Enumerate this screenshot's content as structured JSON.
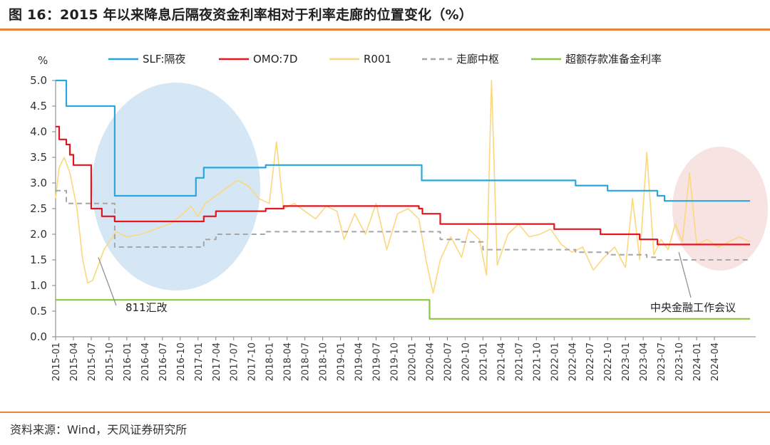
{
  "header": {
    "title": "图 16：2015 年以来降息后隔夜资金利率相对于利率走廊的位置变化（%）"
  },
  "footer": {
    "source": "资料来源：Wind，天风证券研究所"
  },
  "colors": {
    "slf": "#29a6dc",
    "omo": "#e3151f",
    "r001": "#fbd87f",
    "center": "#a6a6a6",
    "excess": "#8cc63f",
    "accent": "#e8833a",
    "ellipse_left": "#c7ddf1",
    "ellipse_right": "#f6d9d9"
  },
  "chart_data": {
    "type": "line",
    "title": "2015 年以来降息后隔夜资金利率相对于利率走廊的位置变化（%）",
    "ylabel": "%",
    "xlabel": "",
    "ylim": [
      0.0,
      5.0
    ],
    "xlim": [
      2015.0,
      2024.83
    ],
    "yticks": [
      "0.0",
      "0.5",
      "1.0",
      "1.5",
      "2.0",
      "2.5",
      "3.0",
      "3.5",
      "4.0",
      "4.5",
      "5.0"
    ],
    "xtick_labels": [
      "2015-01",
      "2015-04",
      "2015-07",
      "2015-10",
      "2016-01",
      "2016-04",
      "2016-07",
      "2016-10",
      "2017-01",
      "2017-04",
      "2017-07",
      "2017-10",
      "2018-01",
      "2018-04",
      "2018-07",
      "2018-10",
      "2019-01",
      "2019-04",
      "2019-07",
      "2019-10",
      "2020-01",
      "2020-04",
      "2020-07",
      "2020-10",
      "2021-01",
      "2021-04",
      "2021-07",
      "2021-10",
      "2022-01",
      "2022-04",
      "2022-07",
      "2022-10",
      "2023-01",
      "2023-04",
      "2023-07",
      "2023-10",
      "2024-01",
      "2024-04"
    ],
    "legend": [
      "SLF:隔夜",
      "OMO:7D",
      "R001",
      "走廊中枢",
      "超额存款准备金利率"
    ],
    "annotations": [
      "811汇改",
      "中央金融工作会议"
    ],
    "series": [
      {
        "name": "SLF:隔夜",
        "style": "step",
        "x": [
          2015.0,
          2015.15,
          2015.83,
          2016.97,
          2017.08,
          2017.95,
          2019.85,
          2020.14,
          2020.7,
          2021.6,
          2021.95,
          2022.3,
          2022.75,
          2023.3,
          2023.45,
          2023.55,
          2023.7,
          2024.75
        ],
        "values": [
          5.0,
          4.5,
          2.75,
          3.1,
          3.3,
          3.35,
          3.35,
          3.05,
          3.05,
          3.05,
          3.05,
          2.95,
          2.85,
          2.85,
          2.75,
          2.65,
          2.65,
          2.65
        ]
      },
      {
        "name": "OMO:7D",
        "style": "step",
        "x": [
          2015.0,
          2015.05,
          2015.08,
          2015.15,
          2015.2,
          2015.25,
          2015.5,
          2015.65,
          2015.83,
          2017.08,
          2017.25,
          2017.95,
          2018.2,
          2020.1,
          2020.15,
          2020.4,
          2022.0,
          2022.1,
          2022.65,
          2023.2,
          2023.45,
          2023.65,
          2024.5,
          2024.75
        ],
        "values": [
          4.1,
          3.85,
          3.85,
          3.75,
          3.55,
          3.35,
          2.5,
          2.35,
          2.25,
          2.35,
          2.45,
          2.5,
          2.55,
          2.5,
          2.4,
          2.2,
          2.1,
          2.1,
          2.0,
          1.9,
          1.8,
          1.8,
          1.8,
          1.8
        ]
      },
      {
        "name": "走廊中枢",
        "style": "step",
        "x": [
          2015.0,
          2015.15,
          2015.5,
          2015.83,
          2017.08,
          2017.25,
          2017.95,
          2018.2,
          2020.1,
          2020.4,
          2020.7,
          2021.0,
          2021.95,
          2022.3,
          2022.75,
          2023.3,
          2023.45,
          2024.75
        ],
        "values": [
          2.85,
          2.6,
          2.6,
          1.75,
          1.9,
          2.0,
          2.05,
          2.05,
          2.05,
          1.9,
          1.85,
          1.7,
          1.7,
          1.65,
          1.6,
          1.55,
          1.5,
          1.5
        ]
      },
      {
        "name": "超额存款准备金利率",
        "style": "step",
        "x": [
          2015.0,
          2020.2,
          2020.25,
          2024.75
        ],
        "values": [
          0.72,
          0.72,
          0.35,
          0.35
        ]
      },
      {
        "name": "R001",
        "style": "line",
        "x": [
          2015.0,
          2015.05,
          2015.12,
          2015.2,
          2015.3,
          2015.38,
          2015.45,
          2015.52,
          2015.6,
          2015.68,
          2015.75,
          2015.85,
          2016.0,
          2016.2,
          2016.4,
          2016.6,
          2016.75,
          2016.9,
          2017.0,
          2017.1,
          2017.25,
          2017.4,
          2017.55,
          2017.7,
          2017.85,
          2018.0,
          2018.1,
          2018.2,
          2018.35,
          2018.5,
          2018.65,
          2018.8,
          2018.95,
          2019.05,
          2019.2,
          2019.35,
          2019.5,
          2019.65,
          2019.8,
          2019.95,
          2020.1,
          2020.2,
          2020.3,
          2020.4,
          2020.55,
          2020.7,
          2020.8,
          2020.95,
          2021.05,
          2021.12,
          2021.2,
          2021.35,
          2021.5,
          2021.65,
          2021.8,
          2021.95,
          2022.1,
          2022.25,
          2022.4,
          2022.55,
          2022.7,
          2022.85,
          2023.0,
          2023.1,
          2023.2,
          2023.3,
          2023.4,
          2023.5,
          2023.6,
          2023.7,
          2023.8,
          2023.9,
          2024.0,
          2024.15,
          2024.3,
          2024.45,
          2024.6,
          2024.75
        ],
        "values": [
          2.7,
          3.3,
          3.5,
          3.2,
          2.5,
          1.5,
          1.05,
          1.1,
          1.4,
          1.7,
          1.85,
          2.05,
          1.95,
          2.0,
          2.1,
          2.2,
          2.35,
          2.55,
          2.35,
          2.6,
          2.75,
          2.9,
          3.05,
          2.95,
          2.7,
          2.6,
          3.8,
          2.5,
          2.6,
          2.45,
          2.3,
          2.55,
          2.45,
          1.9,
          2.4,
          2.0,
          2.6,
          1.7,
          2.4,
          2.5,
          2.3,
          1.5,
          0.85,
          1.5,
          1.95,
          1.55,
          2.1,
          1.9,
          1.2,
          5.0,
          1.4,
          2.0,
          2.2,
          1.95,
          2.0,
          2.1,
          1.8,
          1.65,
          1.75,
          1.3,
          1.55,
          1.75,
          1.35,
          2.7,
          1.5,
          3.6,
          1.6,
          1.9,
          1.7,
          2.2,
          1.85,
          3.2,
          1.8,
          1.9,
          1.75,
          1.85,
          1.95,
          1.85
        ]
      }
    ]
  }
}
